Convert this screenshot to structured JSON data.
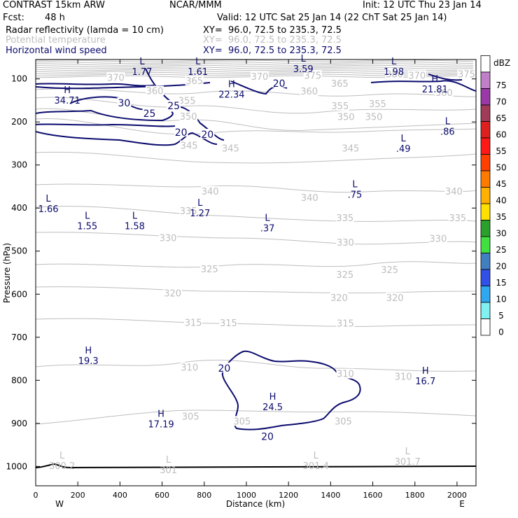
{
  "header": {
    "model": "CONTRAST 15km ARW",
    "center": "NCAR/MMM",
    "init": "Init: 12 UTC Thu 23 Jan 14",
    "fcst_label": "Fcst:",
    "fcst_value": "48 h",
    "valid": "Valid: 12 UTC Sat 25 Jan 14 (22 ChT Sat 25 Jan 14)",
    "fields": [
      {
        "name": "Radar reflectivity (lamda = 10 cm)",
        "xy": "XY=  96.0, 72.5 to 235.3, 72.5",
        "color": "#000000"
      },
      {
        "name": "Potential temperature",
        "xy": "XY=  96.0, 72.5 to 235.3, 72.5",
        "color": "#bdbdbd"
      },
      {
        "name": "Horizontal wind speed",
        "xy": "XY=  96.0, 72.5 to 235.3, 72.5",
        "color": "#0b0b6e"
      }
    ]
  },
  "chart_data": {
    "type": "contour_cross_section",
    "xlabel": "Distance (km)",
    "ylabel": "Pressure (hPa)",
    "xlim": [
      0,
      2090
    ],
    "ylim": [
      1045,
      55
    ],
    "x_ticks": [
      0,
      200,
      400,
      600,
      800,
      1000,
      1200,
      1400,
      1600,
      1800,
      2000
    ],
    "y_ticks": [
      100,
      200,
      300,
      400,
      500,
      600,
      700,
      800,
      900,
      1000
    ],
    "x_end_labels": {
      "left": "W",
      "right": "E"
    },
    "colorbar": {
      "unit": "dBZ",
      "levels": [
        "75",
        "70",
        "65",
        "60",
        "55",
        "50",
        "45",
        "40",
        "35",
        "30",
        "25",
        "20",
        "15",
        "10",
        "5",
        "0"
      ],
      "colors": [
        "#ffffff",
        "#c080c8",
        "#9b38a8",
        "#a03b58",
        "#dc2020",
        "#ff1818",
        "#ff4000",
        "#ff7a00",
        "#ffb000",
        "#ffe000",
        "#2ca02c",
        "#40e040",
        "#4080c0",
        "#3050e8",
        "#30a8f0",
        "#80f0f0",
        "#ffffff"
      ]
    },
    "theta_contours": {
      "color": "#bdbdbd",
      "labels": [
        {
          "t": "375",
          "x": 1315,
          "p": 93
        },
        {
          "t": "380",
          "x": 1703,
          "p": 90
        },
        {
          "t": "370",
          "x": 1810,
          "p": 93
        },
        {
          "t": "375",
          "x": 2045,
          "p": 90
        },
        {
          "t": "370",
          "x": 380,
          "p": 98
        },
        {
          "t": "365",
          "x": 753,
          "p": 105
        },
        {
          "t": "370",
          "x": 1063,
          "p": 96
        },
        {
          "t": "365",
          "x": 1443,
          "p": 112
        },
        {
          "t": "360",
          "x": 565,
          "p": 129
        },
        {
          "t": "360",
          "x": 1298,
          "p": 130
        },
        {
          "t": "360",
          "x": 1938,
          "p": 133
        },
        {
          "t": "355",
          "x": 718,
          "p": 152
        },
        {
          "t": "355",
          "x": 1445,
          "p": 164
        },
        {
          "t": "355",
          "x": 1623,
          "p": 159
        },
        {
          "t": "350",
          "x": 725,
          "p": 188
        },
        {
          "t": "350",
          "x": 1473,
          "p": 189
        },
        {
          "t": "350",
          "x": 1605,
          "p": 189
        },
        {
          "t": "345",
          "x": 728,
          "p": 256
        },
        {
          "t": "345",
          "x": 925,
          "p": 262
        },
        {
          "t": "345",
          "x": 1495,
          "p": 262
        },
        {
          "t": "340",
          "x": 828,
          "p": 362
        },
        {
          "t": "340",
          "x": 1300,
          "p": 377
        },
        {
          "t": "340",
          "x": 1985,
          "p": 362
        },
        {
          "t": "335",
          "x": 725,
          "p": 408
        },
        {
          "t": "335",
          "x": 1468,
          "p": 424
        },
        {
          "t": "335",
          "x": 2003,
          "p": 424
        },
        {
          "t": "330",
          "x": 628,
          "p": 470
        },
        {
          "t": "330",
          "x": 1470,
          "p": 481
        },
        {
          "t": "330",
          "x": 1910,
          "p": 472
        },
        {
          "t": "325",
          "x": 825,
          "p": 543
        },
        {
          "t": "325",
          "x": 1468,
          "p": 556
        },
        {
          "t": "325",
          "x": 1680,
          "p": 544
        },
        {
          "t": "320",
          "x": 650,
          "p": 599
        },
        {
          "t": "320",
          "x": 1440,
          "p": 609
        },
        {
          "t": "320",
          "x": 1705,
          "p": 609
        },
        {
          "t": "315",
          "x": 748,
          "p": 667
        },
        {
          "t": "315",
          "x": 915,
          "p": 668
        },
        {
          "t": "315",
          "x": 1470,
          "p": 669
        },
        {
          "t": "310",
          "x": 730,
          "p": 771
        },
        {
          "t": "310",
          "x": 1470,
          "p": 786
        },
        {
          "t": "310",
          "x": 1745,
          "p": 792
        },
        {
          "t": "305",
          "x": 735,
          "p": 885
        },
        {
          "t": "305",
          "x": 980,
          "p": 896
        },
        {
          "t": "305",
          "x": 1460,
          "p": 896
        }
      ]
    },
    "wind_contours": {
      "color": "#0b0b6e",
      "labels": [
        {
          "t": "30",
          "x": 420,
          "p": 156
        },
        {
          "t": "25",
          "x": 655,
          "p": 162
        },
        {
          "t": "25",
          "x": 540,
          "p": 180
        },
        {
          "t": "20",
          "x": 690,
          "p": 224
        },
        {
          "t": "20",
          "x": 815,
          "p": 229
        },
        {
          "t": "20",
          "x": 1155,
          "p": 110
        },
        {
          "t": "20",
          "x": 895,
          "p": 772
        },
        {
          "t": "20",
          "x": 1100,
          "p": 930
        }
      ]
    },
    "extrema_wind": [
      {
        "kind": "L",
        "value": "1.77",
        "x": 505,
        "p": 66
      },
      {
        "kind": "L",
        "value": "1.61",
        "x": 770,
        "p": 66
      },
      {
        "kind": "L",
        "value": "3.59",
        "x": 1270,
        "p": 60
      },
      {
        "kind": "L",
        "value": "1.98",
        "x": 1700,
        "p": 66
      },
      {
        "kind": "H",
        "value": "21.81",
        "x": 1895,
        "p": 107
      },
      {
        "kind": "H",
        "value": "34.71",
        "x": 150,
        "p": 133
      },
      {
        "kind": "H",
        "value": "22.34",
        "x": 930,
        "p": 119
      },
      {
        "kind": "L",
        "value": ".86",
        "x": 1955,
        "p": 205
      },
      {
        "kind": "L",
        "value": ".49",
        "x": 1745,
        "p": 245
      },
      {
        "kind": "L",
        "value": ".75",
        "x": 1515,
        "p": 352
      },
      {
        "kind": "L",
        "value": "1.66",
        "x": 60,
        "p": 385
      },
      {
        "kind": "L",
        "value": "1.55",
        "x": 245,
        "p": 425
      },
      {
        "kind": "L",
        "value": "1.58",
        "x": 470,
        "p": 425
      },
      {
        "kind": "L",
        "value": "1.27",
        "x": 780,
        "p": 395
      },
      {
        "kind": "L",
        "value": ".37",
        "x": 1100,
        "p": 430
      },
      {
        "kind": "H",
        "value": "19.3",
        "x": 250,
        "p": 738
      },
      {
        "kind": "H",
        "value": "16.7",
        "x": 1850,
        "p": 785
      },
      {
        "kind": "H",
        "value": "24.5",
        "x": 1125,
        "p": 845
      },
      {
        "kind": "H",
        "value": "17.19",
        "x": 595,
        "p": 885
      }
    ],
    "extrema_theta": [
      {
        "kind": "L",
        "value": "300.2",
        "x": 125,
        "p": 985
      },
      {
        "kind": "L",
        "value": "301",
        "x": 630,
        "p": 995
      },
      {
        "kind": "L",
        "value": "301.4",
        "x": 1330,
        "p": 985
      },
      {
        "kind": "L",
        "value": "301.7",
        "x": 1765,
        "p": 975
      }
    ]
  }
}
